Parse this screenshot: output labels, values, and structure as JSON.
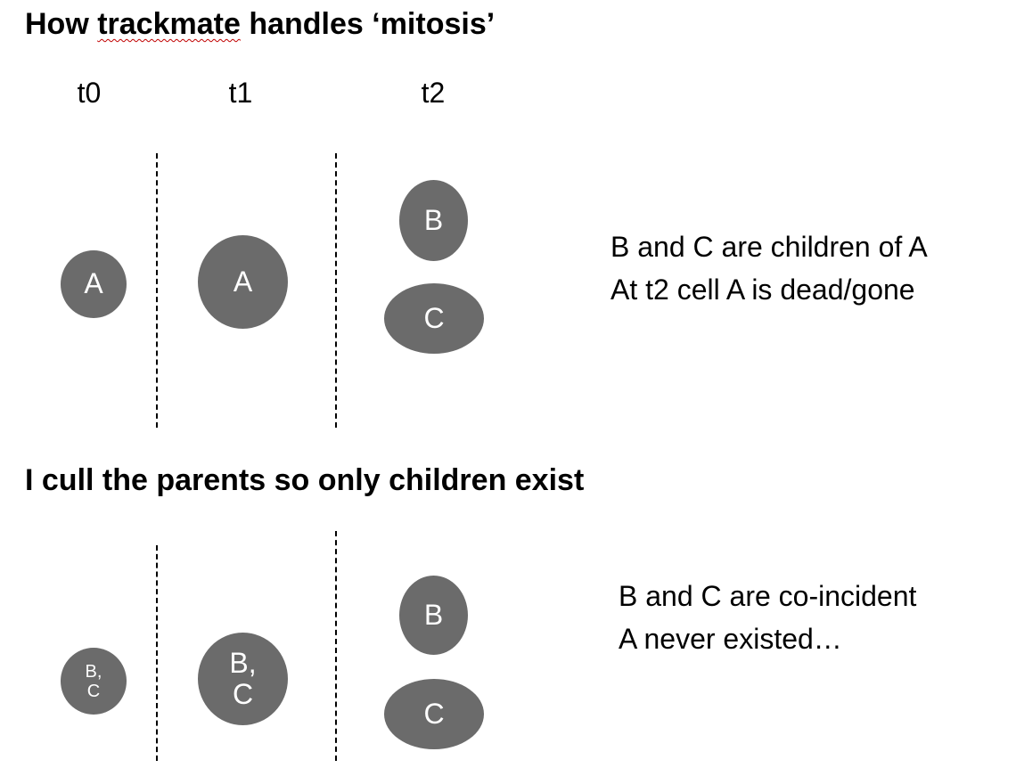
{
  "section1": {
    "title_before": "How ",
    "title_flagged": "trackmate",
    "title_after": " handles ‘mitosis’",
    "time_labels": [
      "t0",
      "t1",
      "t2"
    ],
    "cells": {
      "t0_a": "A",
      "t1_a": "A",
      "t2_b": "B",
      "t2_c": "C"
    },
    "note_lines": [
      "B and C are children of A",
      "At t2 cell A is dead/gone"
    ]
  },
  "section2": {
    "title": "I cull the parents so only children exist",
    "cells": {
      "t0_bc_line1": "B,",
      "t0_bc_line2": "C",
      "t1_bc_line1": "B,",
      "t1_bc_line2": "C",
      "t2_b": "B",
      "t2_c": "C"
    },
    "note_lines": [
      "B and C are co-incident",
      "A never existed…"
    ]
  },
  "colors": {
    "cell_fill": "#6b6b6b",
    "cell_text": "#ffffff",
    "spellcheck_underline": "#c00000"
  }
}
